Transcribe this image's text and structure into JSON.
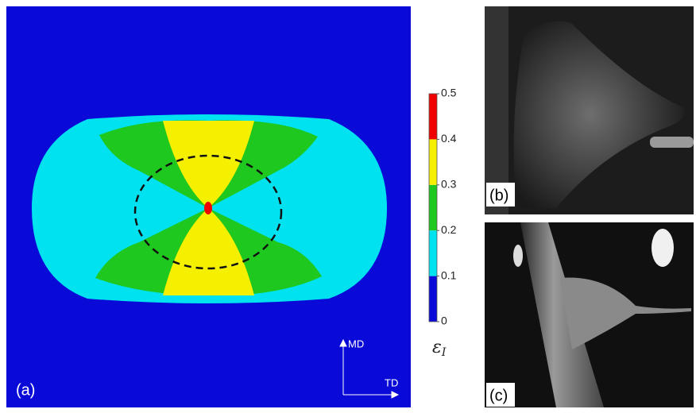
{
  "panels": {
    "a": {
      "label": "(a)",
      "axes": {
        "vertical": "MD",
        "horizontal": "TD"
      },
      "colorbar": {
        "ticks": [
          0,
          0.1,
          0.2,
          0.3,
          0.4,
          0.5
        ],
        "colors": [
          "#0a0ad8",
          "#00e2f0",
          "#1ec81e",
          "#f5f000",
          "#f00000"
        ],
        "symbol": "ε",
        "subscript": "I"
      }
    },
    "b": {
      "label": "(b)"
    },
    "c": {
      "label": "(c)"
    }
  }
}
